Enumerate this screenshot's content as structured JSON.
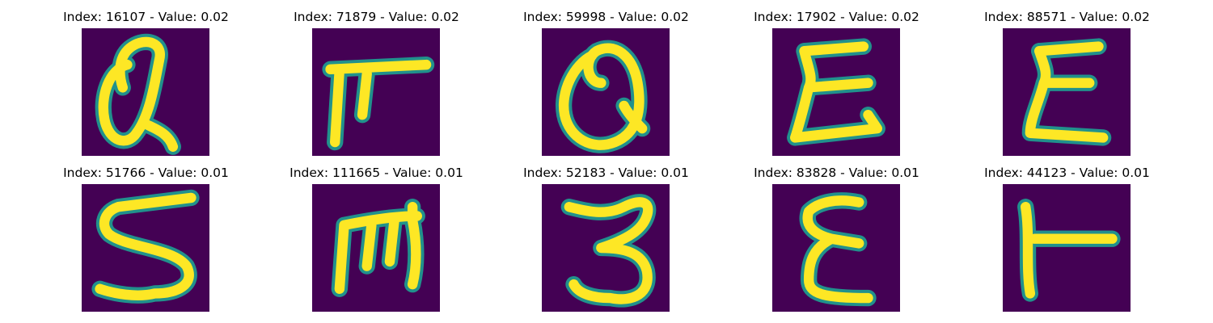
{
  "grid": {
    "background_color": "#440154",
    "stroke_color": "#fde725",
    "edge_color": "#21918c",
    "tiles": [
      {
        "title": "Index: 16107 - Value: 0.02",
        "glyph": "Q-like"
      },
      {
        "title": "Index: 71879 - Value: 0.02",
        "glyph": "T-like"
      },
      {
        "title": "Index: 59998 - Value: 0.02",
        "glyph": "Q-like"
      },
      {
        "title": "Index: 17902 - Value: 0.02",
        "glyph": "E-like"
      },
      {
        "title": "Index: 88571 - Value: 0.02",
        "glyph": "E-like"
      },
      {
        "title": "Index: 51766 - Value: 0.01",
        "glyph": "5-like"
      },
      {
        "title": "Index: 111665 - Value: 0.01",
        "glyph": "m-like"
      },
      {
        "title": "Index: 52183 - Value: 0.01",
        "glyph": "3-like"
      },
      {
        "title": "Index: 83828 - Value: 0.01",
        "glyph": "E-like"
      },
      {
        "title": "Index: 44123 - Value: 0.01",
        "glyph": "T-like"
      }
    ]
  }
}
